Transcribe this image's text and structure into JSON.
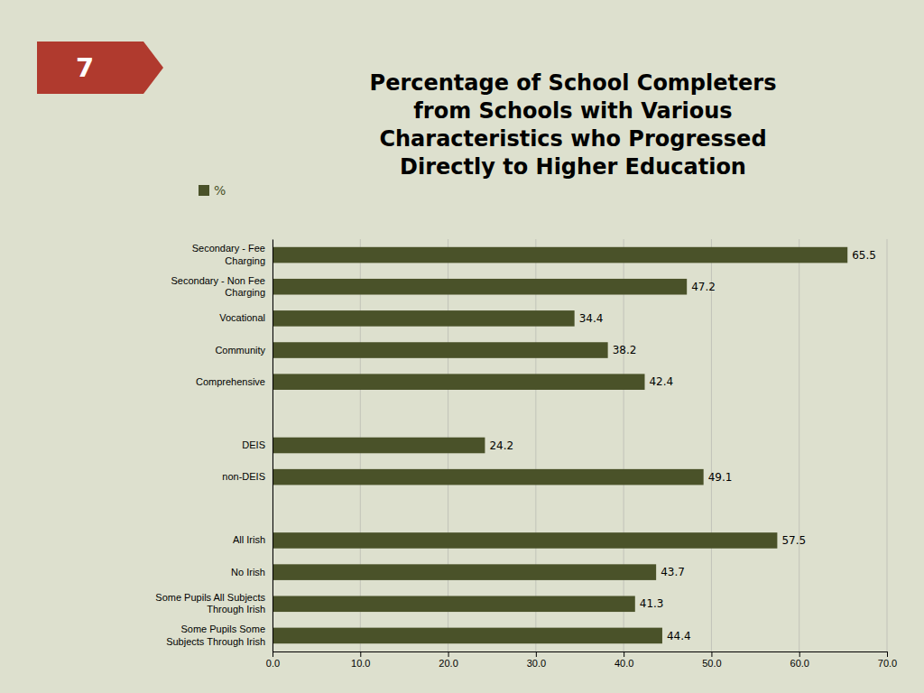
{
  "chart_data": {
    "type": "bar",
    "orientation": "horizontal",
    "title": "Percentage of School Completers\nfrom Schools with Various\nCharacteristics who Progressed\nDirectly to Higher Education",
    "categories": [
      "Secondary - Fee\nCharging",
      "Secondary - Non Fee\nCharging",
      "Vocational",
      "Community",
      "Comprehensive",
      null,
      "DEIS",
      "non-DEIS",
      null,
      "All Irish",
      "No Irish",
      "Some Pupils All Subjects\nThrough Irish",
      "Some Pupils Some\nSubjects Through Irish"
    ],
    "series": [
      {
        "name": "%",
        "color": "#4a5229",
        "values": [
          65.5,
          47.2,
          34.4,
          38.2,
          42.4,
          null,
          24.2,
          49.1,
          null,
          57.5,
          43.7,
          41.3,
          44.4
        ]
      }
    ],
    "xlim": [
      0,
      70
    ],
    "xticks": [
      {
        "value": 0,
        "label": "0.0"
      },
      {
        "value": 10,
        "label": "10.0"
      },
      {
        "value": 20,
        "label": "20.0"
      },
      {
        "value": 30,
        "label": "30.0"
      },
      {
        "value": 40,
        "label": "40.0"
      },
      {
        "value": 50,
        "label": "50.0"
      },
      {
        "value": 60,
        "label": "60.0"
      },
      {
        "value": 70,
        "label": "70.0"
      }
    ],
    "grid": true,
    "data_labels": true,
    "legend": "upper left",
    "annotations": [
      {
        "text": "7",
        "color": "#b03a2e"
      }
    ]
  }
}
